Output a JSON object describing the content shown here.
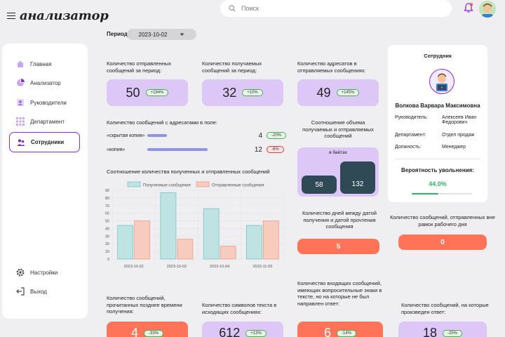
{
  "app": {
    "logo_text": "анализатор"
  },
  "search": {
    "placeholder": "Поиск"
  },
  "sidebar": {
    "items": [
      {
        "label": "Главная",
        "icon": "home-icon"
      },
      {
        "label": "Анализатор",
        "icon": "analyzer-icon"
      },
      {
        "label": "Руководители",
        "icon": "managers-icon"
      },
      {
        "label": "Департамент",
        "icon": "department-icon"
      },
      {
        "label": "Сотрудники",
        "icon": "employees-icon"
      }
    ],
    "settings_label": "Настройки",
    "logout_label": "Выход"
  },
  "period": {
    "label": "Период:",
    "value": "2023-10-02"
  },
  "metrics": {
    "sent": {
      "label": "Количество отправленных сообщений за период:",
      "value": "50",
      "badge": "+194%"
    },
    "received": {
      "label": "Количество получаемых сообщений за период:",
      "value": "32",
      "badge": "+10%"
    },
    "recipients": {
      "label": "Количество адресатов в отправляемых сообщениях:",
      "value": "49",
      "badge": "+145%"
    }
  },
  "fields": {
    "title": "Количество сообщений с адресатами в поле:",
    "rows": [
      {
        "label": "«скрытая копия»",
        "value": "4",
        "badge": "-20%",
        "fill": 0.33
      },
      {
        "label": "«копия»",
        "value": "12",
        "badge": "-8%",
        "fill": 1.0
      }
    ]
  },
  "volume": {
    "title": "Соотношение объема получаемых и отправляемых сообщений",
    "unit": "в байтах",
    "received": "58",
    "sent": "132"
  },
  "days_between": {
    "label": "Количество дней между датой получения и датой прочтения сообщения",
    "value": "5"
  },
  "after_hours": {
    "label": "Количество сообщений, отправленных вне рамок рабочего дня",
    "value": "0"
  },
  "profile": {
    "title": "Сотрудник",
    "name": "Волкова Варвара Максимовна",
    "rows": [
      {
        "key": "Руководитель:",
        "value": "Алексеев Иван Федорович"
      },
      {
        "key": "Департамент:",
        "value": "Отдел продаж"
      },
      {
        "key": "Должность:",
        "value": "Менеджер"
      }
    ],
    "dismissal_label": "Вероятность увольнения:",
    "dismissal_value": "44.0%",
    "dismissal_fraction": 0.44,
    "accent": "#2bb56a"
  },
  "chart_data": {
    "type": "bar",
    "title": "Соотношение количества полученных и отправленных сообщений",
    "categories": [
      "2023-10-02",
      "2023-10-03",
      "2023-10-04",
      "2023-11-03"
    ],
    "series": [
      {
        "name": "Полученные сообщения",
        "values": [
          44,
          87,
          66,
          44
        ],
        "color": "#bfe3e3",
        "stroke": "#7cc2c2"
      },
      {
        "name": "Отправленные сообщения",
        "values": [
          50,
          26,
          17,
          50
        ],
        "color": "#f7cbbd",
        "stroke": "#ee9d88"
      }
    ],
    "yticks": [
      0,
      10,
      20,
      30,
      40,
      50,
      60,
      70,
      80,
      90
    ],
    "ylim": [
      0,
      90
    ],
    "grid": true,
    "legend": "top"
  },
  "bottom": {
    "late_read": {
      "label": "Количество сообщений, прочитанных позднее времени получения:",
      "value": "4",
      "badge": "-33%"
    },
    "chars": {
      "label": "Количество символов текста в исходящих сообщениях:",
      "value": "612",
      "badge": "+13%"
    },
    "questions": {
      "label": "Количество входящих сообщений, имеющих вопросительные знаки в тексте, но на которые не был направлен ответ:",
      "value": "6",
      "badge": "-14%"
    },
    "replies": {
      "label": "Количество сообщений, на которые произведен ответ:",
      "value": "18",
      "badge": "-25%"
    }
  }
}
